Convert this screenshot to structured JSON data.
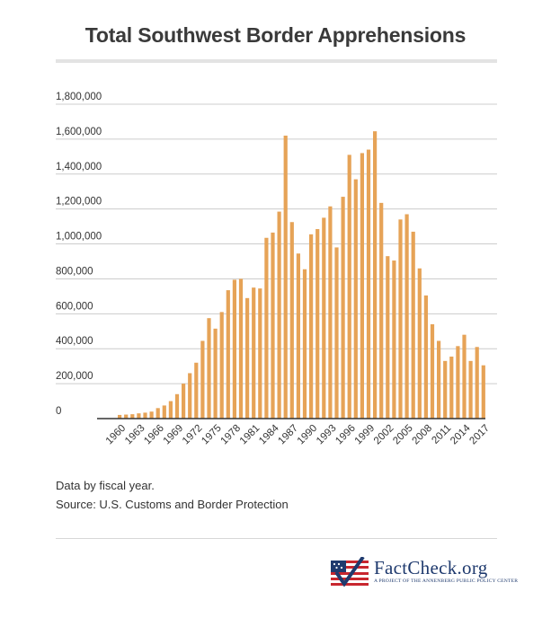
{
  "chart_data": {
    "type": "bar",
    "title": "Total Southwest Border Apprehensions",
    "xlabel": "",
    "ylabel": "",
    "ylim": [
      0,
      1800000
    ],
    "y_ticks": [
      {
        "value": 0,
        "label": "0"
      },
      {
        "value": 200000,
        "label": "200,000"
      },
      {
        "value": 400000,
        "label": "400,000"
      },
      {
        "value": 600000,
        "label": "600,000"
      },
      {
        "value": 800000,
        "label": "800,000"
      },
      {
        "value": 1000000,
        "label": "1,000,000"
      },
      {
        "value": 1200000,
        "label": "1,200,000"
      },
      {
        "value": 1400000,
        "label": "1,400,000"
      },
      {
        "value": 1600000,
        "label": "1,600,000"
      },
      {
        "value": 1800000,
        "label": "1,800,000"
      }
    ],
    "x_tick_labels": [
      "1960",
      "1963",
      "1966",
      "1969",
      "1972",
      "1975",
      "1978",
      "1981",
      "1984",
      "1987",
      "1990",
      "1993",
      "1996",
      "1999",
      "2002",
      "2005",
      "2008",
      "2011",
      "2014",
      "2017"
    ],
    "categories": [
      1960,
      1961,
      1962,
      1963,
      1964,
      1965,
      1966,
      1967,
      1968,
      1969,
      1970,
      1971,
      1972,
      1973,
      1974,
      1975,
      1976,
      1977,
      1978,
      1979,
      1980,
      1981,
      1982,
      1983,
      1984,
      1985,
      1986,
      1987,
      1988,
      1989,
      1990,
      1991,
      1992,
      1993,
      1994,
      1995,
      1996,
      1997,
      1998,
      1999,
      2000,
      2001,
      2002,
      2003,
      2004,
      2005,
      2006,
      2007,
      2008,
      2009,
      2010,
      2011,
      2012,
      2013,
      2014,
      2015,
      2016,
      2017
    ],
    "values": [
      21000,
      23000,
      25000,
      30000,
      34000,
      40000,
      60000,
      75000,
      100000,
      140000,
      200000,
      260000,
      320000,
      445000,
      575000,
      515000,
      610000,
      735000,
      795000,
      800000,
      690000,
      750000,
      745000,
      1035000,
      1065000,
      1185000,
      1620000,
      1125000,
      945000,
      855000,
      1055000,
      1085000,
      1150000,
      1215000,
      980000,
      1270000,
      1510000,
      1370000,
      1520000,
      1540000,
      1645000,
      1235000,
      930000,
      905000,
      1140000,
      1170000,
      1070000,
      860000,
      705000,
      540000,
      445000,
      330000,
      355000,
      415000,
      480000,
      330000,
      410000,
      305000
    ],
    "bar_color": "#e6a357",
    "grid": true
  },
  "notes": {
    "line1": "Data by fiscal year.",
    "line2": "Source: U.S. Customs and Border Protection"
  },
  "logo": {
    "main": "FactCheck.org",
    "sub": "A PROJECT OF THE ANNENBERG PUBLIC POLICY CENTER"
  },
  "colors": {
    "grid": "#cccccc",
    "axis": "#333333",
    "logo_blue": "#1f3a6e",
    "logo_red": "#c8262e"
  }
}
